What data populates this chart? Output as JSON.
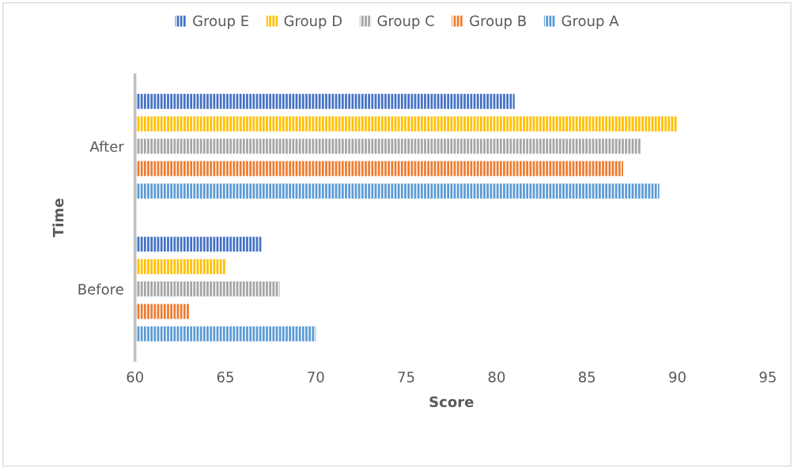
{
  "chart_data": {
    "type": "bar",
    "orientation": "horizontal",
    "xlabel": "Score",
    "ylabel": "Time",
    "categories": [
      "After",
      "Before"
    ],
    "series": [
      {
        "name": "Group A",
        "color": "#5b9bd5",
        "values": [
          89,
          70
        ]
      },
      {
        "name": "Group B",
        "color": "#ed7d31",
        "values": [
          87,
          63
        ]
      },
      {
        "name": "Group C",
        "color": "#a5a5a5",
        "values": [
          88,
          68
        ]
      },
      {
        "name": "Group D",
        "color": "#ffc000",
        "values": [
          90,
          65
        ]
      },
      {
        "name": "Group E",
        "color": "#4472c4",
        "values": [
          81,
          67
        ]
      }
    ],
    "xlim": [
      60,
      95
    ],
    "xticks": [
      60,
      65,
      70,
      75,
      80,
      85,
      90,
      95
    ],
    "grid": false,
    "legend": "top"
  }
}
